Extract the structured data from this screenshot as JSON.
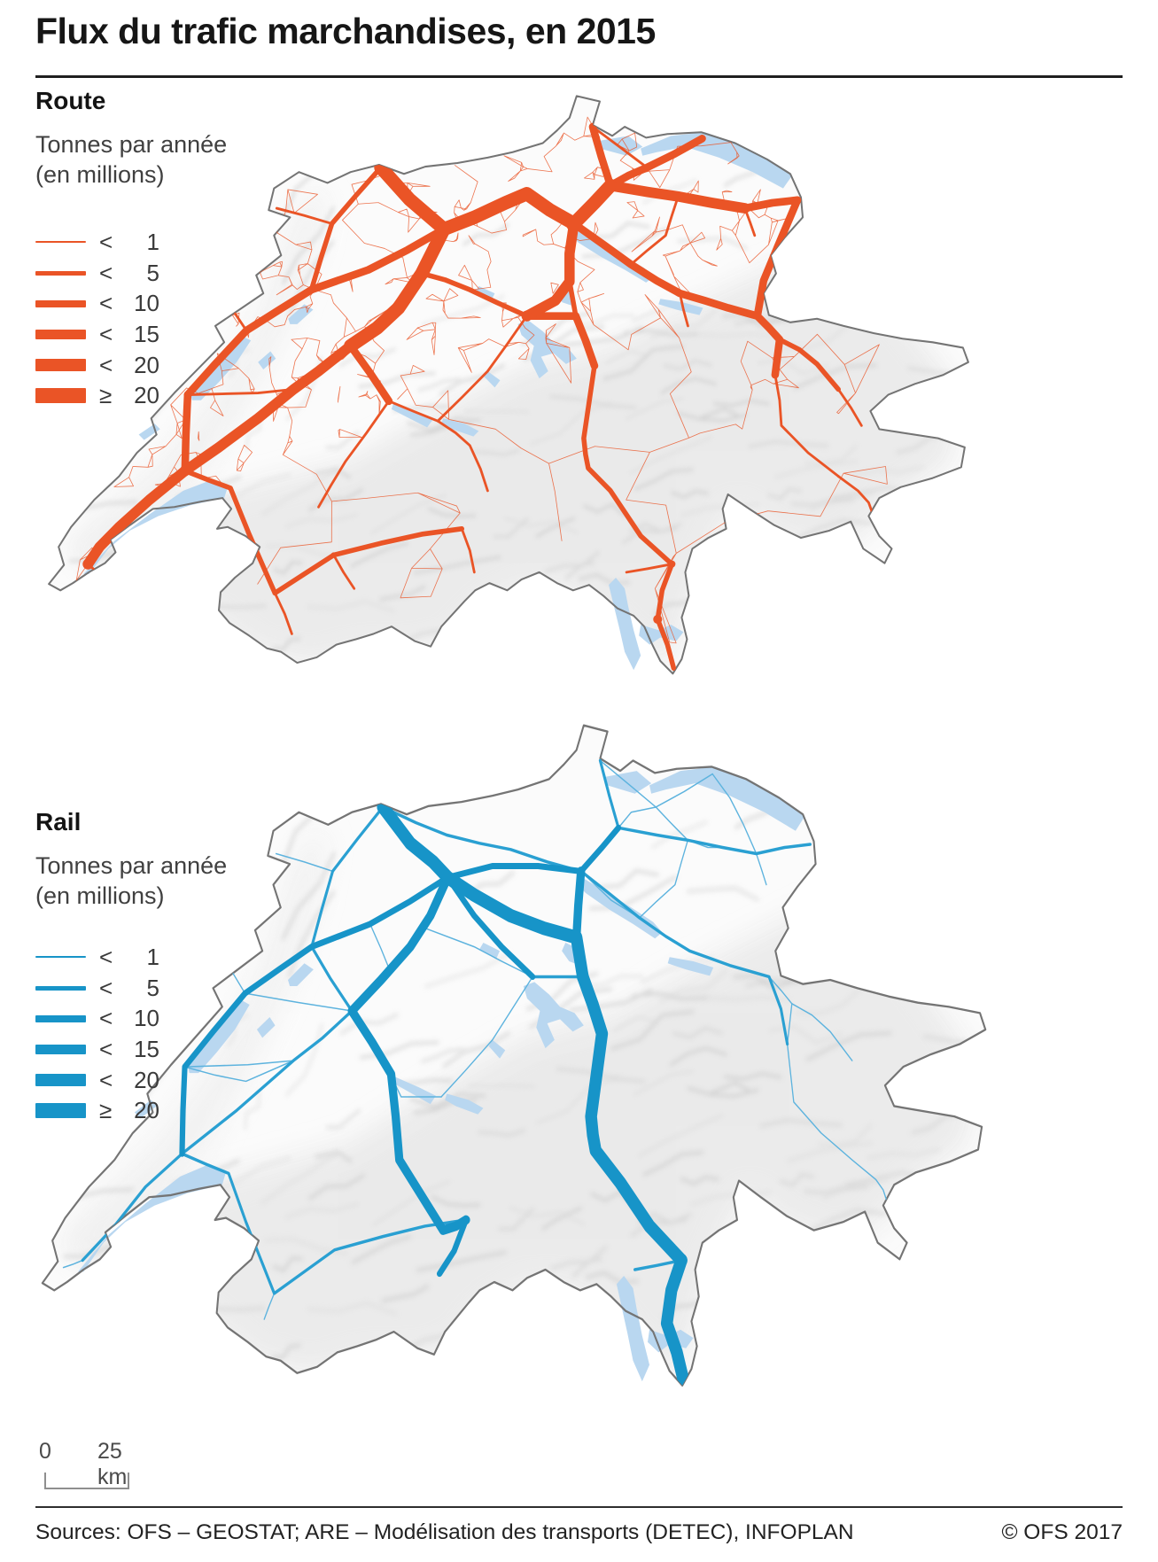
{
  "title": "Flux du trafic marchandises, en 2015",
  "sections": {
    "route": {
      "heading": "Route",
      "unit_line1": "Tonnes par année",
      "unit_line2": "(en millions)",
      "color": "#ea5426",
      "classes": [
        {
          "op": "<",
          "value": "1"
        },
        {
          "op": "<",
          "value": "5"
        },
        {
          "op": "<",
          "value": "10"
        },
        {
          "op": "<",
          "value": "15"
        },
        {
          "op": "<",
          "value": "20"
        },
        {
          "op": "≥",
          "value": "20"
        }
      ]
    },
    "rail": {
      "heading": "Rail",
      "unit_line1": "Tonnes par année",
      "unit_line2": "(en millions)",
      "color": "#1794c8",
      "classes": [
        {
          "op": "<",
          "value": "1"
        },
        {
          "op": "<",
          "value": "5"
        },
        {
          "op": "<",
          "value": "10"
        },
        {
          "op": "<",
          "value": "15"
        },
        {
          "op": "<",
          "value": "20"
        },
        {
          "op": "≥",
          "value": "20"
        }
      ]
    }
  },
  "map_colors": {
    "lake": "#b9d7f0",
    "border": "#747474",
    "country_fill": "#fbfbfb",
    "route_flow": "#ea5426",
    "rail_flow_main": "#1794c8",
    "rail_flow_medium": "#2aa0d2",
    "rail_flow_thin": "#5db3de"
  },
  "scale_bar": {
    "zero_label": "0",
    "distance_label": "25 km"
  },
  "footer": {
    "sources": "Sources: OFS – GEOSTAT; ARE – Modélisation des transports (DETEC), INFOPLAN",
    "copyright": "© OFS 2017"
  }
}
